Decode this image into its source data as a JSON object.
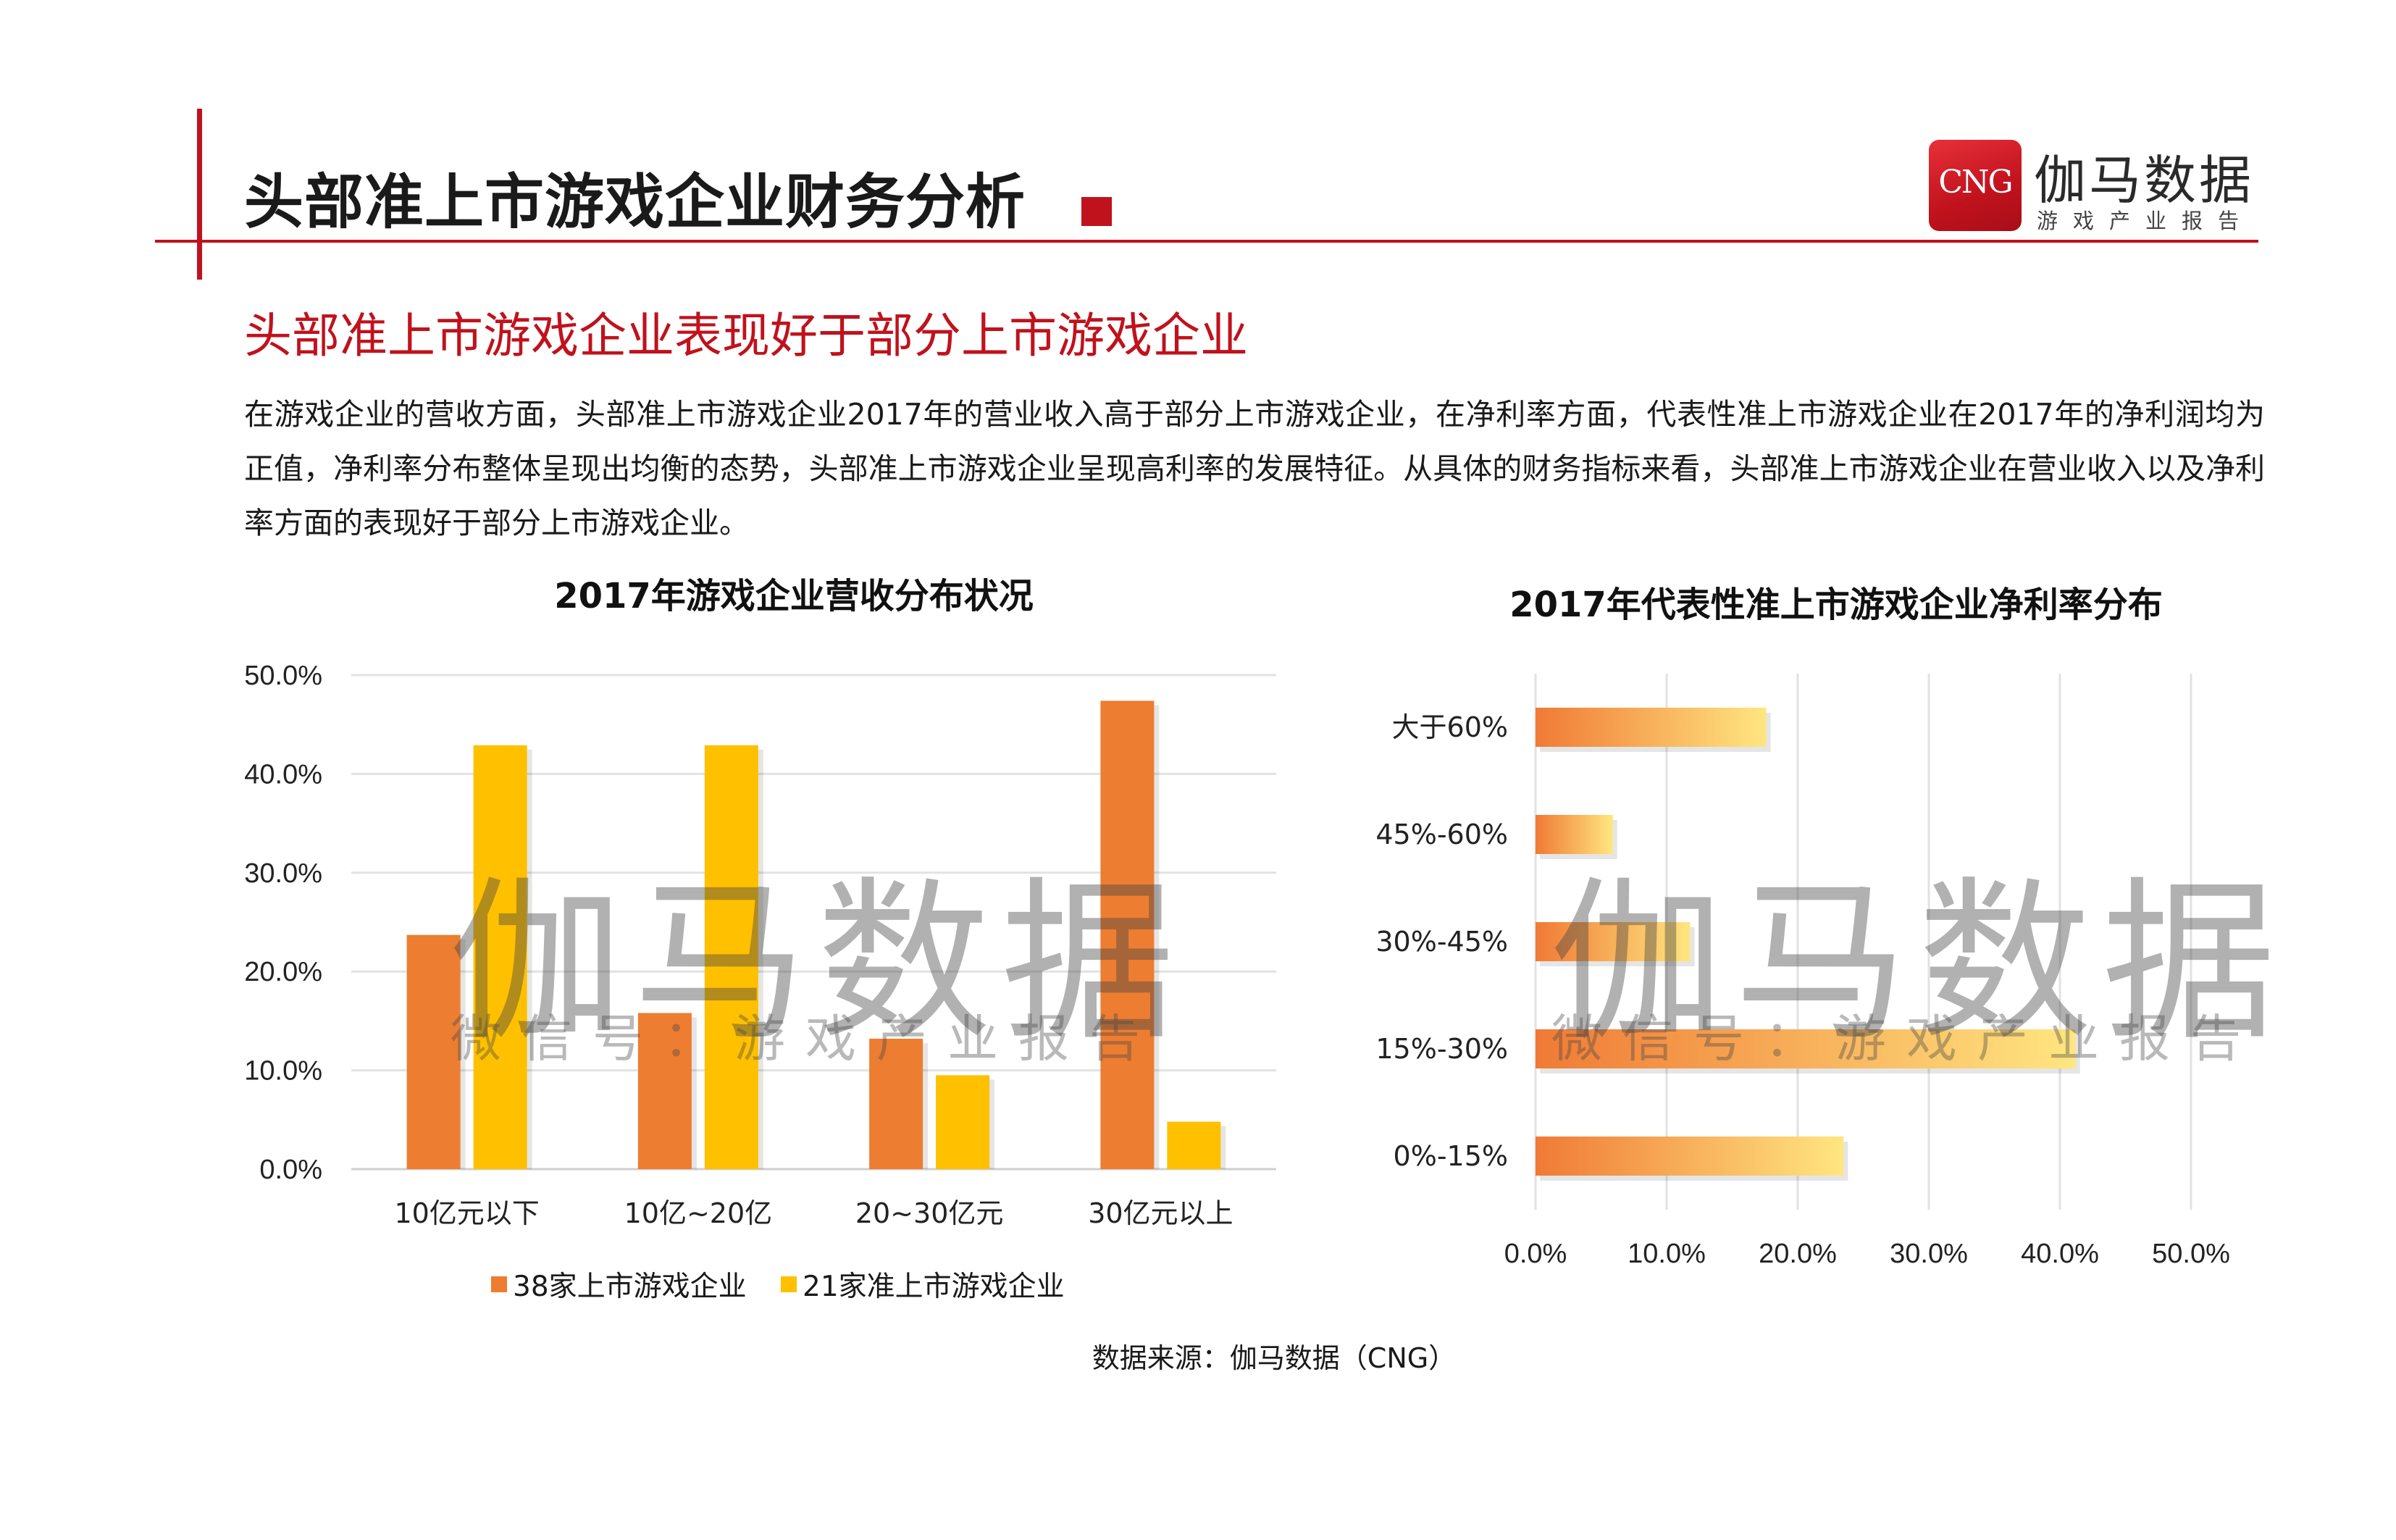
{
  "header": {
    "title": "头部准上市游戏企业财务分析"
  },
  "logo": {
    "box_text": "CNG",
    "name": "伽马数据",
    "tagline": "游戏产业报告"
  },
  "subtitle": "头部准上市游戏企业表现好于部分上市游戏企业",
  "paragraph": "在游戏企业的营收方面，头部准上市游戏企业2017年的营业收入高于部分上市游戏企业，在净利率方面，代表性准上市游戏企业在2017年的净利润均为正值，净利率分布整体呈现出均衡的态势，头部准上市游戏企业呈现高利率的发展特征。从具体的财务指标来看，头部准上市游戏企业在营业收入以及净利率方面的表现好于部分上市游戏企业。",
  "watermark": {
    "main": "伽马数据",
    "sub": "微信号：游戏产业报告"
  },
  "colors": {
    "brand_red": "#c0121d",
    "orange": "#ed7d31",
    "yellow": "#ffc000",
    "bar_gradient_start": "#f07a35",
    "bar_gradient_end": "#ffe680"
  },
  "chart_data": [
    {
      "type": "bar",
      "title": "2017年游戏企业营收分布状况",
      "categories": [
        "10亿元以下",
        "10亿~20亿",
        "20~30亿元",
        "30亿元以上"
      ],
      "series": [
        {
          "name": "38家上市游戏企业",
          "values": [
            23.7,
            15.8,
            13.2,
            47.4
          ]
        },
        {
          "name": "21家准上市游戏企业",
          "values": [
            42.9,
            42.9,
            9.5,
            4.8
          ]
        }
      ],
      "yticks": [
        "0.0%",
        "10.0%",
        "20.0%",
        "30.0%",
        "40.0%",
        "50.0%"
      ],
      "ylim": [
        0,
        50
      ],
      "grid": true,
      "legend_position": "bottom"
    },
    {
      "type": "bar",
      "orientation": "horizontal",
      "title": "2017年代表性准上市游戏企业净利率分布",
      "categories": [
        "大于60%",
        "45%-60%",
        "30%-45%",
        "15%-30%",
        "0%-15%"
      ],
      "values": [
        17.6,
        5.9,
        11.8,
        41.2,
        23.5
      ],
      "xticks": [
        "0.0%",
        "10.0%",
        "20.0%",
        "30.0%",
        "40.0%",
        "50.0%"
      ],
      "xlim": [
        0,
        50
      ],
      "grid": true
    }
  ],
  "source": "数据来源：伽马数据（CNG）"
}
